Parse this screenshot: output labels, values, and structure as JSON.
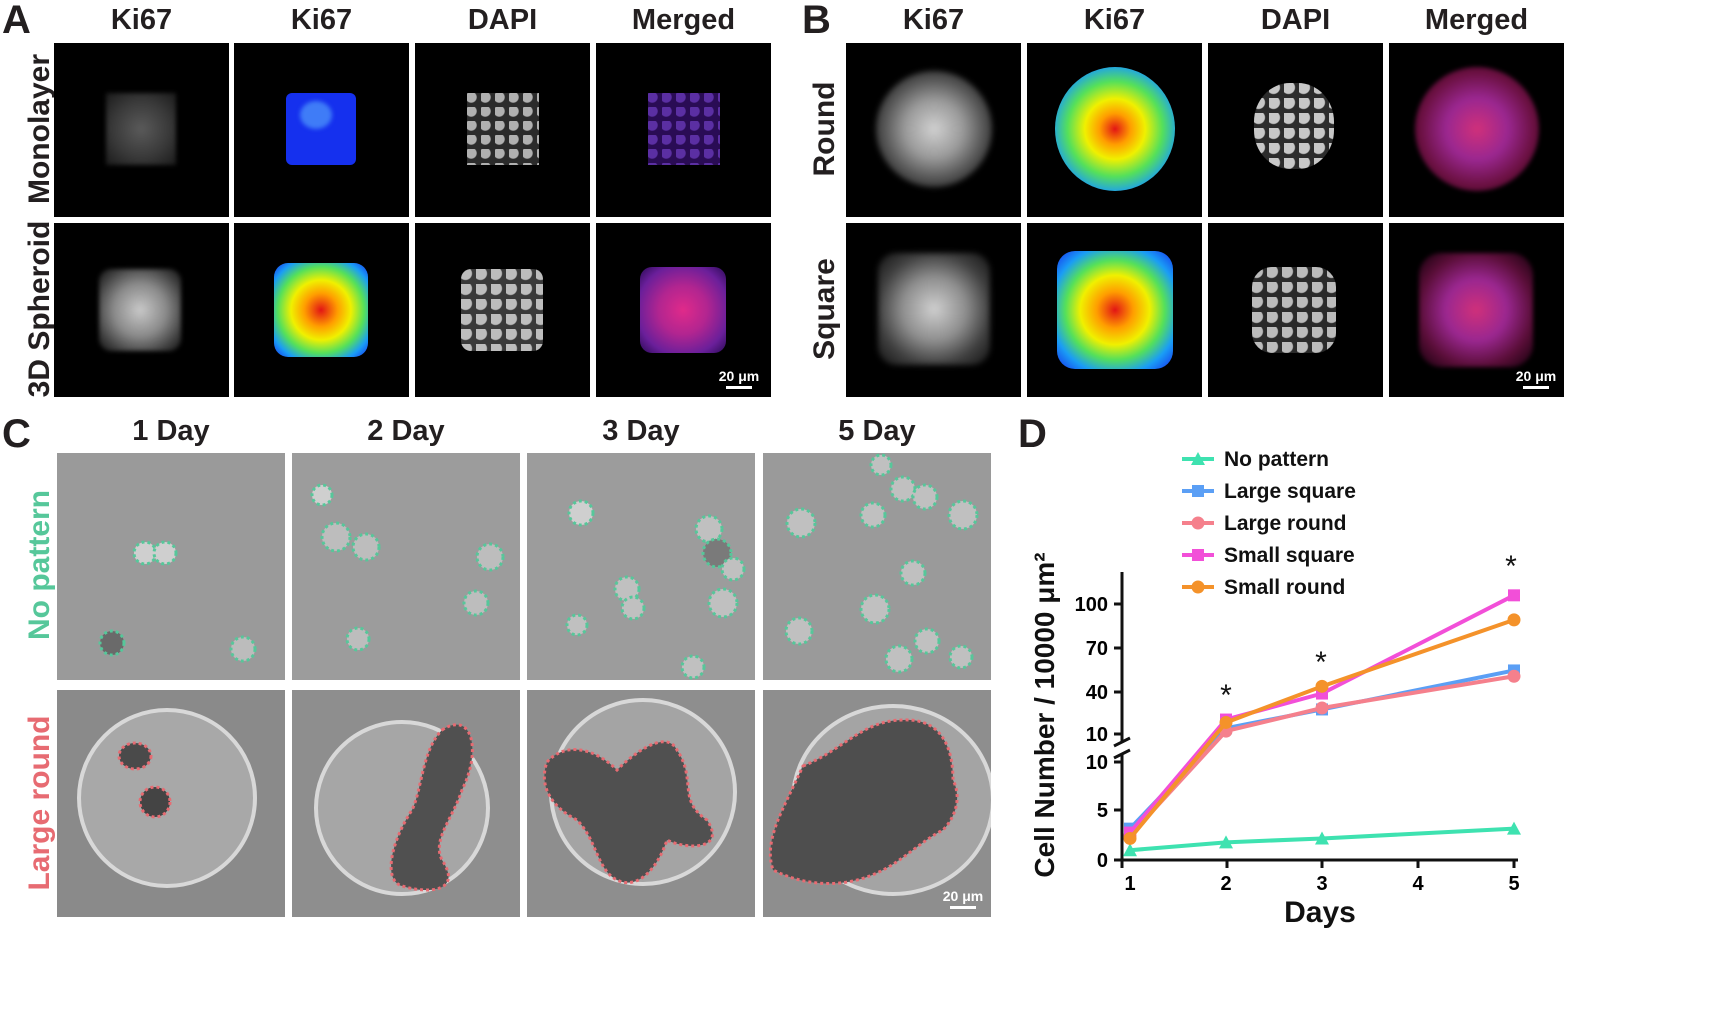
{
  "panelA": {
    "letter": "A",
    "columns": [
      "Ki67",
      "Ki67",
      "DAPI",
      "Merged"
    ],
    "rows": [
      "Monolayer",
      "3D Spheroid"
    ],
    "scale_bar": "20 μm"
  },
  "panelB": {
    "letter": "B",
    "columns": [
      "Ki67",
      "Ki67",
      "DAPI",
      "Merged"
    ],
    "rows": [
      "Round",
      "Square"
    ],
    "scale_bar": "20 μm"
  },
  "panelC": {
    "letter": "C",
    "columns": [
      "1 Day",
      "2 Day",
      "3 Day",
      "5 Day"
    ],
    "rows": [
      "No pattern",
      "Large round"
    ],
    "scale_bar": "20 μm",
    "colors": {
      "no_pattern": "#56c79a",
      "large_round": "#e76b72"
    }
  },
  "panelD": {
    "letter": "D",
    "chart_data": {
      "type": "line",
      "xlabel": "Days",
      "ylabel": "Cell Number / 10000 μm²",
      "x_ticks": [
        "1",
        "2",
        "3",
        "4",
        "5"
      ],
      "y_ticks_lower": [
        "0",
        "5",
        "10"
      ],
      "y_ticks_upper": [
        "10",
        "40",
        "70",
        "100"
      ],
      "axis_break": true,
      "significance": [
        "*",
        "*",
        "*"
      ],
      "series": [
        {
          "name": "No pattern",
          "color": "#3ee2b0",
          "marker": "triangle",
          "x": [
            1,
            2,
            3,
            5
          ],
          "y": [
            1.0,
            1.8,
            2.2,
            3.2
          ]
        },
        {
          "name": "Large square",
          "color": "#5b9ff5",
          "marker": "square",
          "x": [
            1,
            2,
            3,
            5
          ],
          "y": [
            3.2,
            14,
            27,
            54
          ]
        },
        {
          "name": "Large round",
          "color": "#f5808c",
          "marker": "circle",
          "x": [
            1,
            2,
            3,
            5
          ],
          "y": [
            2.5,
            12,
            28,
            50
          ]
        },
        {
          "name": "Small square",
          "color": "#f24fd8",
          "marker": "square",
          "x": [
            1,
            2,
            3,
            5
          ],
          "y": [
            2.8,
            20,
            38,
            106
          ]
        },
        {
          "name": "Small round",
          "color": "#f4922a",
          "marker": "circle",
          "x": [
            1,
            2,
            3,
            5
          ],
          "y": [
            2.2,
            18,
            43,
            89
          ]
        }
      ]
    }
  }
}
